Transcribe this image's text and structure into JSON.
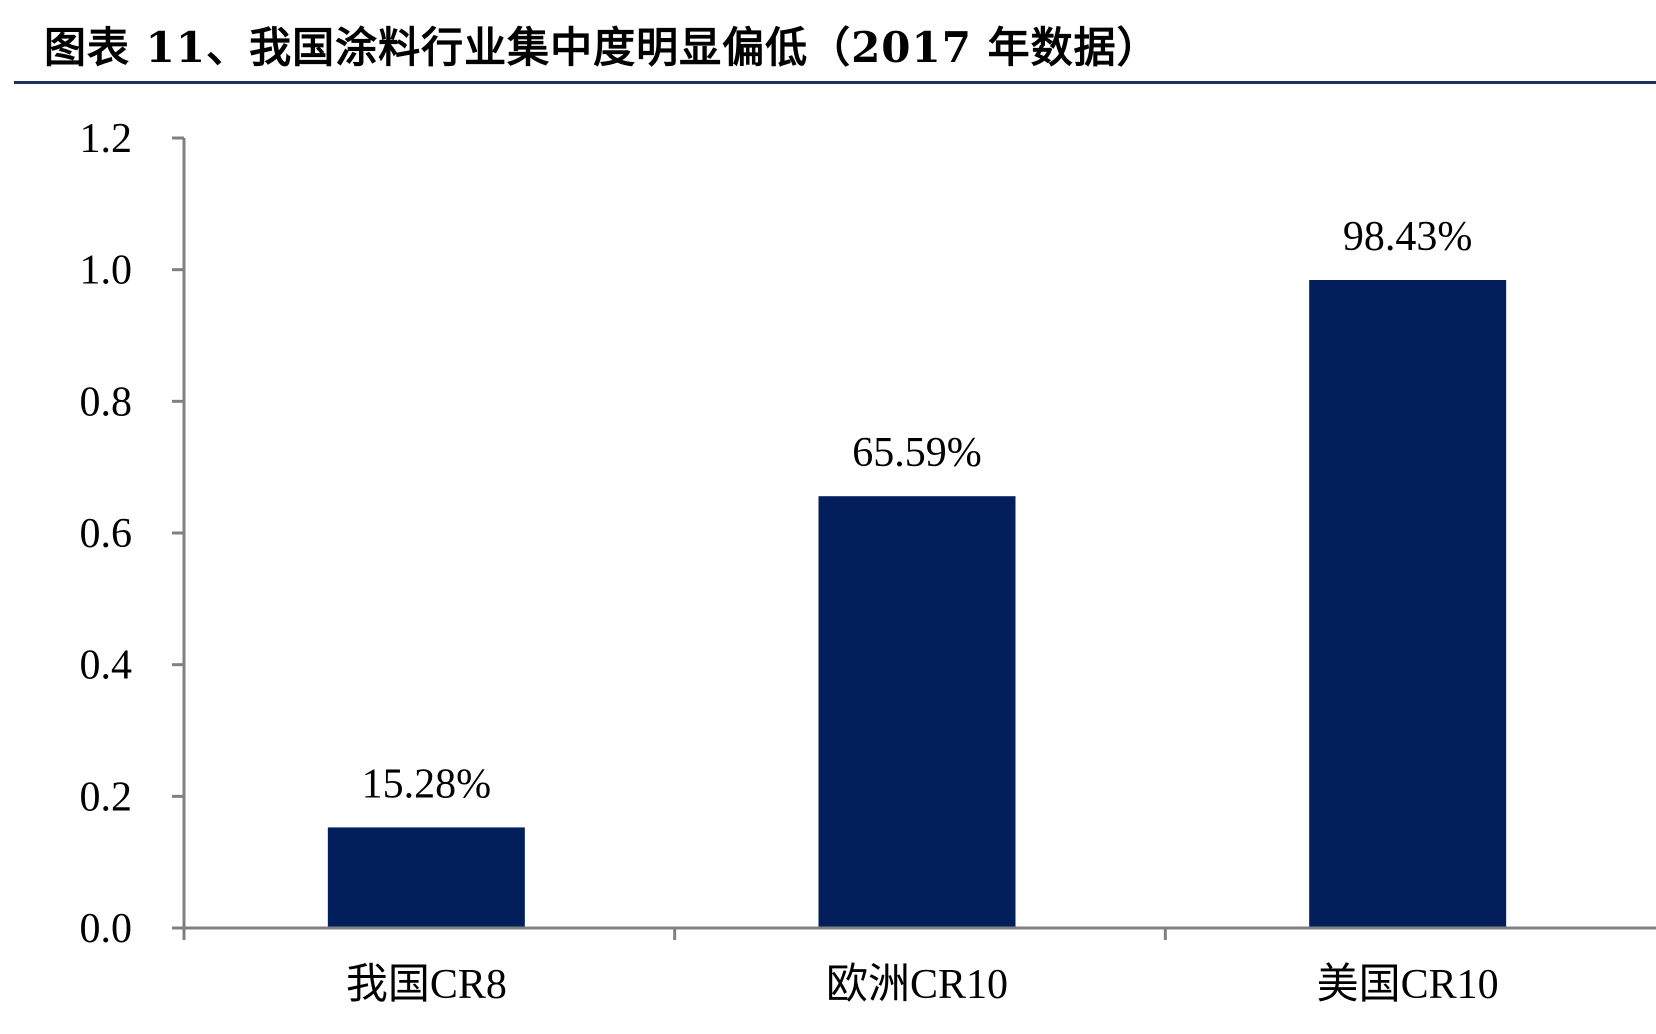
{
  "header": {
    "title": "图表 11、我国涂料行业集中度明显偏低（2017 年数据）"
  },
  "colors": {
    "bar": "#021f5c",
    "axis": "#808080",
    "rule": "#1f2f5e"
  },
  "chart_data": {
    "type": "bar",
    "title": "图表 11、我国涂料行业集中度明显偏低（2017 年数据）",
    "categories": [
      "我国CR8",
      "欧洲CR10",
      "美国CR10"
    ],
    "values": [
      0.1528,
      0.6559,
      0.9843
    ],
    "data_labels": [
      "15.28%",
      "65.59%",
      "98.43%"
    ],
    "ylim": [
      0,
      1.2
    ],
    "yticks": [
      "0.0",
      "0.2",
      "0.4",
      "0.6",
      "0.8",
      "1.0",
      "1.2"
    ],
    "xlabel": "",
    "ylabel": "",
    "grid": false,
    "legend": "none"
  }
}
